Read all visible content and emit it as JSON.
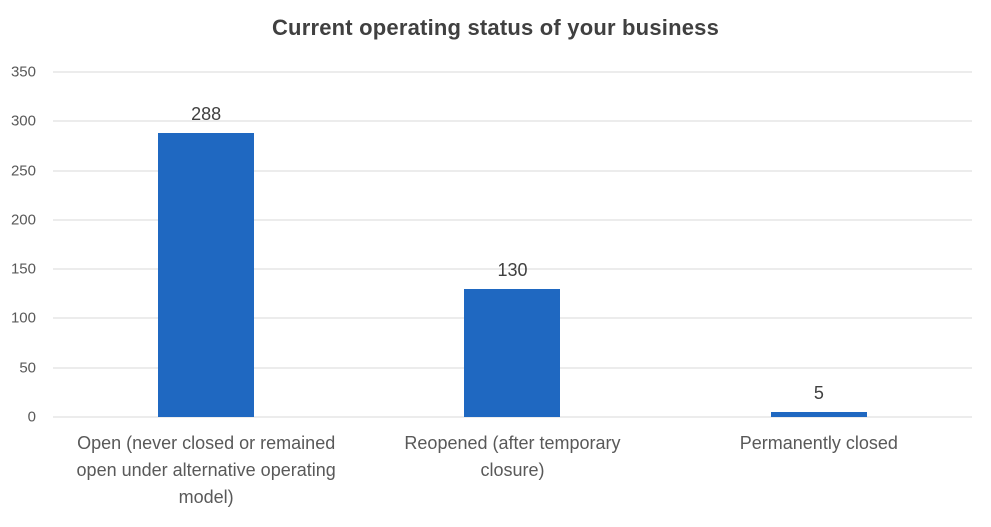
{
  "chart_data": {
    "type": "bar",
    "title": "Current operating status of your business",
    "categories": [
      "Open (never closed or remained open under alternative operating model)",
      "Reopened (after temporary closure)",
      "Permanently closed"
    ],
    "values": [
      288,
      130,
      5
    ],
    "data_labels": [
      "288",
      "130",
      "5"
    ],
    "xlabel": "",
    "ylabel": "",
    "ylim": [
      0,
      350
    ],
    "ytick_step": 50,
    "yticks": [
      0,
      50,
      100,
      150,
      200,
      250,
      300,
      350
    ],
    "grid": "horizontal",
    "legend": "none",
    "colors": {
      "bar": "#1f68c1",
      "gridline": "#d9d9d9",
      "title_text": "#404040",
      "axis_text": "#595959",
      "value_label_text": "#404040",
      "background": "#ffffff"
    }
  }
}
